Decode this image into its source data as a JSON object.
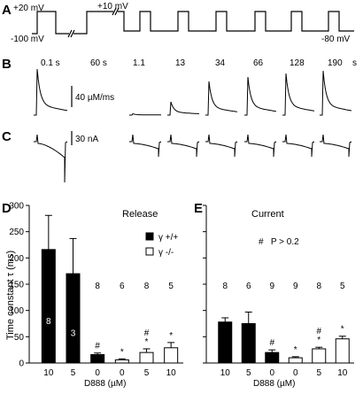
{
  "panels": {
    "A": {
      "label": "A",
      "v_high": "+20 mV",
      "v_mid": "+10 mV",
      "v_low": "-100 mV",
      "v_hold": "-80 mV"
    },
    "B": {
      "label": "B",
      "times": [
        "0.1 s",
        "60 s",
        "1.1",
        "13",
        "34",
        "66",
        "128",
        "190",
        "s"
      ],
      "scale": "40 µM/ms"
    },
    "C": {
      "label": "C",
      "scale": "30 nA"
    },
    "D": {
      "label": "D",
      "title": "Release",
      "ylabel": "Time constant τ (ms)",
      "xlabel": "D888 (µM)",
      "legend": {
        "wt": "γ +/+",
        "ko": "γ -/-"
      }
    },
    "E": {
      "label": "E",
      "title": "Current",
      "xlabel": "D888 (µM)",
      "note": "#   P > 0.2"
    }
  },
  "chart_data": [
    {
      "type": "bar",
      "panel": "D",
      "title": "Release",
      "ylabel": "Time constant τ (ms)",
      "xlabel": "D888 (µM)",
      "ylim": [
        0,
        300
      ],
      "yticks": [
        0,
        50,
        100,
        150,
        200,
        250,
        300
      ],
      "categories": [
        "10",
        "5",
        "0",
        "0",
        "5",
        "10"
      ],
      "groups": [
        "wt",
        "wt",
        "wt",
        "ko",
        "ko",
        "ko"
      ],
      "values": [
        216,
        170,
        16,
        6,
        20,
        29
      ],
      "errors": [
        65,
        67,
        3,
        2,
        7,
        10
      ],
      "n": [
        "8",
        "3",
        "8",
        "6",
        "8",
        "5"
      ],
      "n_inside": [
        true,
        true,
        false,
        false,
        false,
        false
      ],
      "marks": [
        "",
        "",
        "#",
        "*",
        "#\n*",
        "*"
      ]
    },
    {
      "type": "bar",
      "panel": "E",
      "title": "Current",
      "xlabel": "D888 (µM)",
      "ylim": [
        0,
        300
      ],
      "yticks": [
        0,
        50,
        100,
        150,
        200,
        250,
        300
      ],
      "categories": [
        "10",
        "5",
        "0",
        "0",
        "5",
        "10"
      ],
      "groups": [
        "wt",
        "wt",
        "wt",
        "ko",
        "ko",
        "ko"
      ],
      "values": [
        78,
        75,
        20,
        10,
        27,
        46
      ],
      "errors": [
        8,
        22,
        5,
        2,
        3,
        5
      ],
      "n": [
        "8",
        "6",
        "9",
        "9",
        "8",
        "5"
      ],
      "n_inside": [
        false,
        false,
        false,
        false,
        false,
        false
      ],
      "marks": [
        "",
        "",
        "#",
        "*",
        "#\n*",
        "*"
      ]
    }
  ],
  "colors": {
    "wt": "#000000",
    "ko": "#ffffff",
    "stroke": "#000000"
  }
}
